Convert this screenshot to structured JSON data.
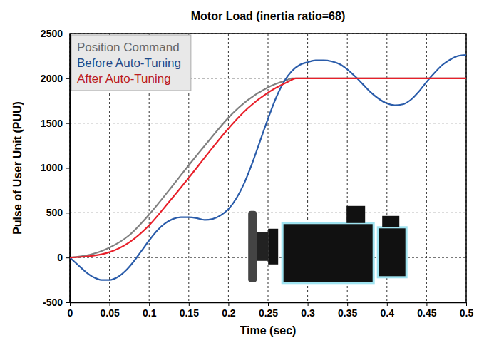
{
  "chart_data": {
    "type": "line",
    "title": "Motor Load (inertia ratio=68)",
    "x_label": "Time (sec)",
    "y_label": "Pulse of User Unit (PUU)",
    "xlim": [
      0,
      0.5
    ],
    "xticks": [
      0,
      0.05,
      0.1,
      0.15,
      0.2,
      0.25,
      0.3,
      0.35,
      0.4,
      0.45,
      0.5
    ],
    "ylim": [
      -500,
      2500
    ],
    "yticks": [
      -500,
      0,
      500,
      1000,
      1500,
      2000,
      2500
    ],
    "grid": true,
    "legend": "upper-left",
    "series": [
      {
        "name": "Position Command",
        "color": "#808080",
        "x": [
          0,
          0.025,
          0.05,
          0.075,
          0.1,
          0.125,
          0.15,
          0.175,
          0.2,
          0.225,
          0.25,
          0.275,
          0.28,
          0.3,
          0.5
        ],
        "values": [
          0,
          30,
          110,
          250,
          480,
          750,
          1030,
          1300,
          1560,
          1760,
          1900,
          1985,
          2000,
          2000,
          2000
        ]
      },
      {
        "name": "Before Auto-Tuning",
        "color": "#2a5caa",
        "x": [
          0,
          0.01,
          0.02,
          0.03,
          0.04,
          0.05,
          0.06,
          0.07,
          0.08,
          0.09,
          0.1,
          0.11,
          0.12,
          0.13,
          0.14,
          0.15,
          0.16,
          0.17,
          0.18,
          0.19,
          0.2,
          0.21,
          0.22,
          0.23,
          0.24,
          0.25,
          0.26,
          0.27,
          0.28,
          0.29,
          0.3,
          0.31,
          0.32,
          0.33,
          0.34,
          0.35,
          0.36,
          0.37,
          0.38,
          0.39,
          0.4,
          0.41,
          0.42,
          0.43,
          0.44,
          0.45,
          0.46,
          0.47,
          0.48,
          0.49,
          0.5
        ],
        "values": [
          0,
          -80,
          -160,
          -220,
          -250,
          -250,
          -220,
          -150,
          -50,
          70,
          190,
          300,
          380,
          430,
          450,
          450,
          440,
          420,
          430,
          470,
          540,
          660,
          830,
          1050,
          1300,
          1550,
          1780,
          1960,
          2080,
          2150,
          2180,
          2200,
          2200,
          2190,
          2160,
          2100,
          2020,
          1930,
          1840,
          1770,
          1720,
          1700,
          1710,
          1760,
          1850,
          1960,
          2060,
          2150,
          2210,
          2250,
          2260
        ]
      },
      {
        "name": "After Auto-Tuning",
        "color": "#e8202a",
        "x": [
          0,
          0.025,
          0.05,
          0.075,
          0.1,
          0.125,
          0.15,
          0.175,
          0.2,
          0.225,
          0.25,
          0.275,
          0.285,
          0.3,
          0.5
        ],
        "values": [
          0,
          15,
          60,
          170,
          360,
          620,
          890,
          1170,
          1440,
          1670,
          1840,
          1960,
          2000,
          2000,
          2000
        ]
      }
    ]
  }
}
